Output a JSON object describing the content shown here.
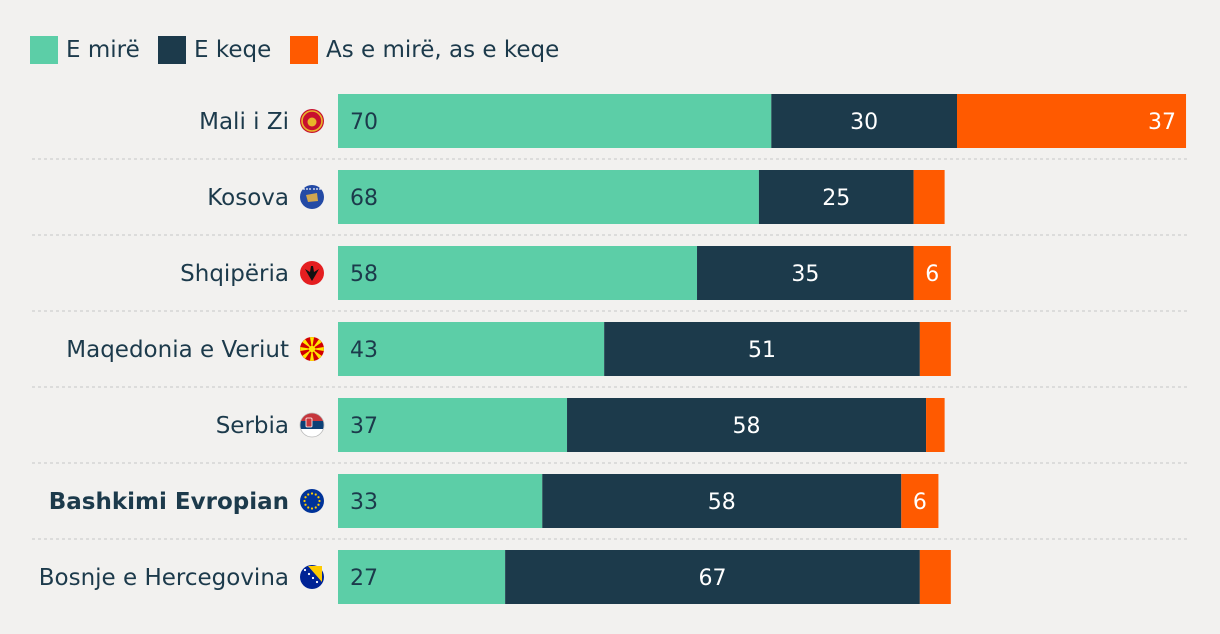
{
  "colors": {
    "good": "#5ccea7",
    "bad": "#1c3a4b",
    "neutral": "#ff5a00",
    "label": "#1c3a4b",
    "grid": "#cfcfcf"
  },
  "chart_data": {
    "type": "bar",
    "orientation": "horizontal",
    "stacked": true,
    "legend": {
      "position": "top-left"
    },
    "categories": [
      "Mali i Zi",
      "Kosova",
      "Shqipëria",
      "Maqedonia e Veriut",
      "Serbia",
      "Bashkimi Evropian",
      "Bosnje e Hercegovina"
    ],
    "category_icons": [
      "montenegro-flag-icon",
      "kosovo-flag-icon",
      "albania-flag-icon",
      "north-macedonia-flag-icon",
      "serbia-flag-icon",
      "eu-flag-icon",
      "bosnia-flag-icon"
    ],
    "bold_category": "Bashkimi Evropian",
    "series": [
      {
        "name": "E mirë",
        "color": "#5ccea7",
        "values": [
          70,
          68,
          58,
          43,
          37,
          33,
          27
        ],
        "labels": [
          "70",
          "68",
          "58",
          "43",
          "37",
          "33",
          "27"
        ]
      },
      {
        "name": "E keqe",
        "color": "#1c3a4b",
        "values": [
          30,
          25,
          35,
          51,
          58,
          58,
          67
        ],
        "labels": [
          "30",
          "25",
          "35",
          "51",
          "58",
          "58",
          "67"
        ]
      },
      {
        "name": "As e mirë, as e keqe",
        "color": "#ff5a00",
        "values": [
          37,
          5,
          6,
          5,
          3,
          6,
          5
        ],
        "labels": [
          "37",
          "",
          "6",
          "",
          "",
          "6",
          ""
        ]
      }
    ]
  }
}
